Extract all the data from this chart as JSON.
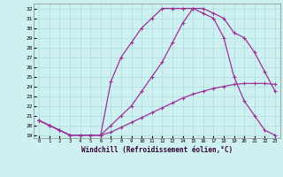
{
  "xlabel": "Windchill (Refroidissement éolien,°C)",
  "bg_color": "#cff0f0",
  "grid_color": "#aadddd",
  "line_color": "#993399",
  "xlim": [
    -0.5,
    23.5
  ],
  "ylim": [
    18.7,
    32.5
  ],
  "xticks": [
    0,
    1,
    2,
    3,
    4,
    5,
    6,
    7,
    8,
    9,
    10,
    11,
    12,
    13,
    14,
    15,
    16,
    17,
    18,
    19,
    20,
    21,
    22,
    23
  ],
  "yticks": [
    19,
    20,
    21,
    22,
    23,
    24,
    25,
    26,
    27,
    28,
    29,
    30,
    31,
    32
  ],
  "curve1_x": [
    0,
    1,
    2,
    3,
    4,
    5,
    6,
    7,
    8,
    9,
    10,
    11,
    12,
    13,
    14,
    15,
    16,
    17,
    18,
    19,
    20,
    21,
    22,
    23
  ],
  "curve1_y": [
    20.5,
    20.0,
    19.5,
    19.0,
    19.0,
    19.0,
    19.0,
    19.3,
    19.8,
    20.3,
    20.8,
    21.3,
    21.8,
    22.3,
    22.8,
    23.2,
    23.5,
    23.8,
    24.0,
    24.2,
    24.3,
    24.3,
    24.3,
    24.2
  ],
  "curve2_x": [
    0,
    1,
    2,
    3,
    4,
    5,
    6,
    7,
    8,
    9,
    10,
    11,
    12,
    13,
    14,
    15,
    16,
    17,
    18,
    19,
    20,
    21,
    22,
    23
  ],
  "curve2_y": [
    20.5,
    20.0,
    19.5,
    19.0,
    19.0,
    19.0,
    19.0,
    20.0,
    21.0,
    22.0,
    23.5,
    25.0,
    26.5,
    28.5,
    30.5,
    32.0,
    32.0,
    31.5,
    31.0,
    29.5,
    29.0,
    27.5,
    25.5,
    23.5
  ],
  "curve3_x": [
    0,
    1,
    2,
    3,
    4,
    5,
    6,
    7,
    8,
    9,
    10,
    11,
    12,
    13,
    14,
    15,
    16,
    17,
    18,
    19,
    20,
    21,
    22,
    23
  ],
  "curve3_y": [
    20.5,
    20.0,
    19.5,
    19.0,
    19.0,
    19.0,
    19.0,
    24.5,
    27.0,
    28.5,
    30.0,
    31.0,
    32.0,
    32.0,
    32.0,
    32.0,
    31.5,
    31.0,
    29.0,
    25.0,
    22.5,
    21.0,
    19.5,
    19.0
  ]
}
